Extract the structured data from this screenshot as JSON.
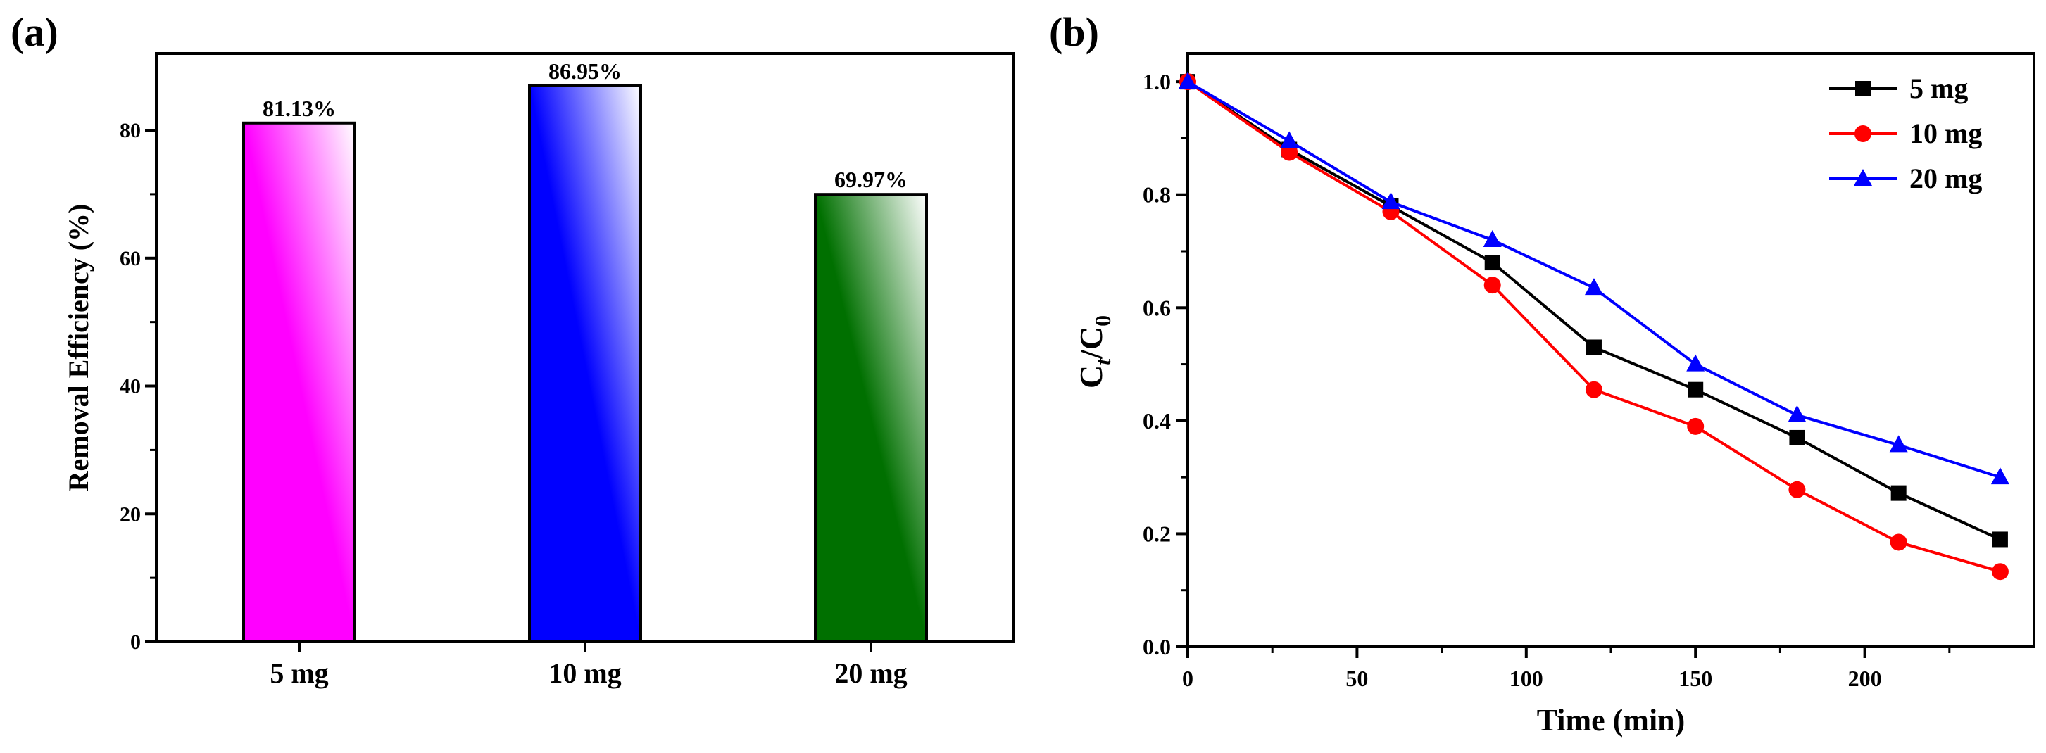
{
  "chart_data": [
    {
      "panel_label": "(a)",
      "type": "bar",
      "title": "",
      "xlabel": "",
      "ylabel": "Removal Efficiency  (%)",
      "categories": [
        "5 mg",
        "10 mg",
        "20 mg"
      ],
      "values": [
        81.13,
        86.95,
        69.97
      ],
      "value_labels": [
        "81.13%",
        "86.95%",
        "69.97%"
      ],
      "bar_colors": [
        "#ff00ff",
        "#0000ff",
        "#007000"
      ],
      "ylim": [
        0,
        92
      ],
      "yticks": [
        0,
        20,
        40,
        60,
        80
      ],
      "ytick_labels": [
        "0",
        "20",
        "40",
        "60",
        "80"
      ],
      "grid": false
    },
    {
      "panel_label": "(b)",
      "type": "line",
      "title": "",
      "xlabel": "Time (min)",
      "ylabel_main": "C",
      "ylabel_sub1": "t",
      "ylabel_mid": "/C",
      "ylabel_sub2": "0",
      "x": [
        0,
        30,
        60,
        90,
        120,
        150,
        180,
        210,
        240
      ],
      "series": [
        {
          "name": "5 mg",
          "color": "#000000",
          "marker": "square",
          "values": [
            1.0,
            0.88,
            0.78,
            0.68,
            0.53,
            0.455,
            0.37,
            0.272,
            0.19
          ]
        },
        {
          "name": "10 mg",
          "color": "#ff0000",
          "marker": "circle",
          "values": [
            1.0,
            0.875,
            0.77,
            0.64,
            0.455,
            0.39,
            0.278,
            0.185,
            0.133
          ]
        },
        {
          "name": "20 mg",
          "color": "#0000ff",
          "marker": "triangle",
          "values": [
            1.0,
            0.895,
            0.787,
            0.72,
            0.635,
            0.5,
            0.41,
            0.357,
            0.3
          ]
        }
      ],
      "xlim": [
        0,
        250
      ],
      "ylim": [
        0.0,
        1.05
      ],
      "xticks": [
        0,
        50,
        100,
        150,
        200
      ],
      "xtick_labels": [
        "0",
        "50",
        "100",
        "150",
        "200"
      ],
      "yticks": [
        0.0,
        0.2,
        0.4,
        0.6,
        0.8,
        1.0
      ],
      "ytick_labels": [
        "0.0",
        "0.2",
        "0.4",
        "0.6",
        "0.8",
        "1.0"
      ],
      "legend_position": "top-right",
      "grid": false
    }
  ]
}
